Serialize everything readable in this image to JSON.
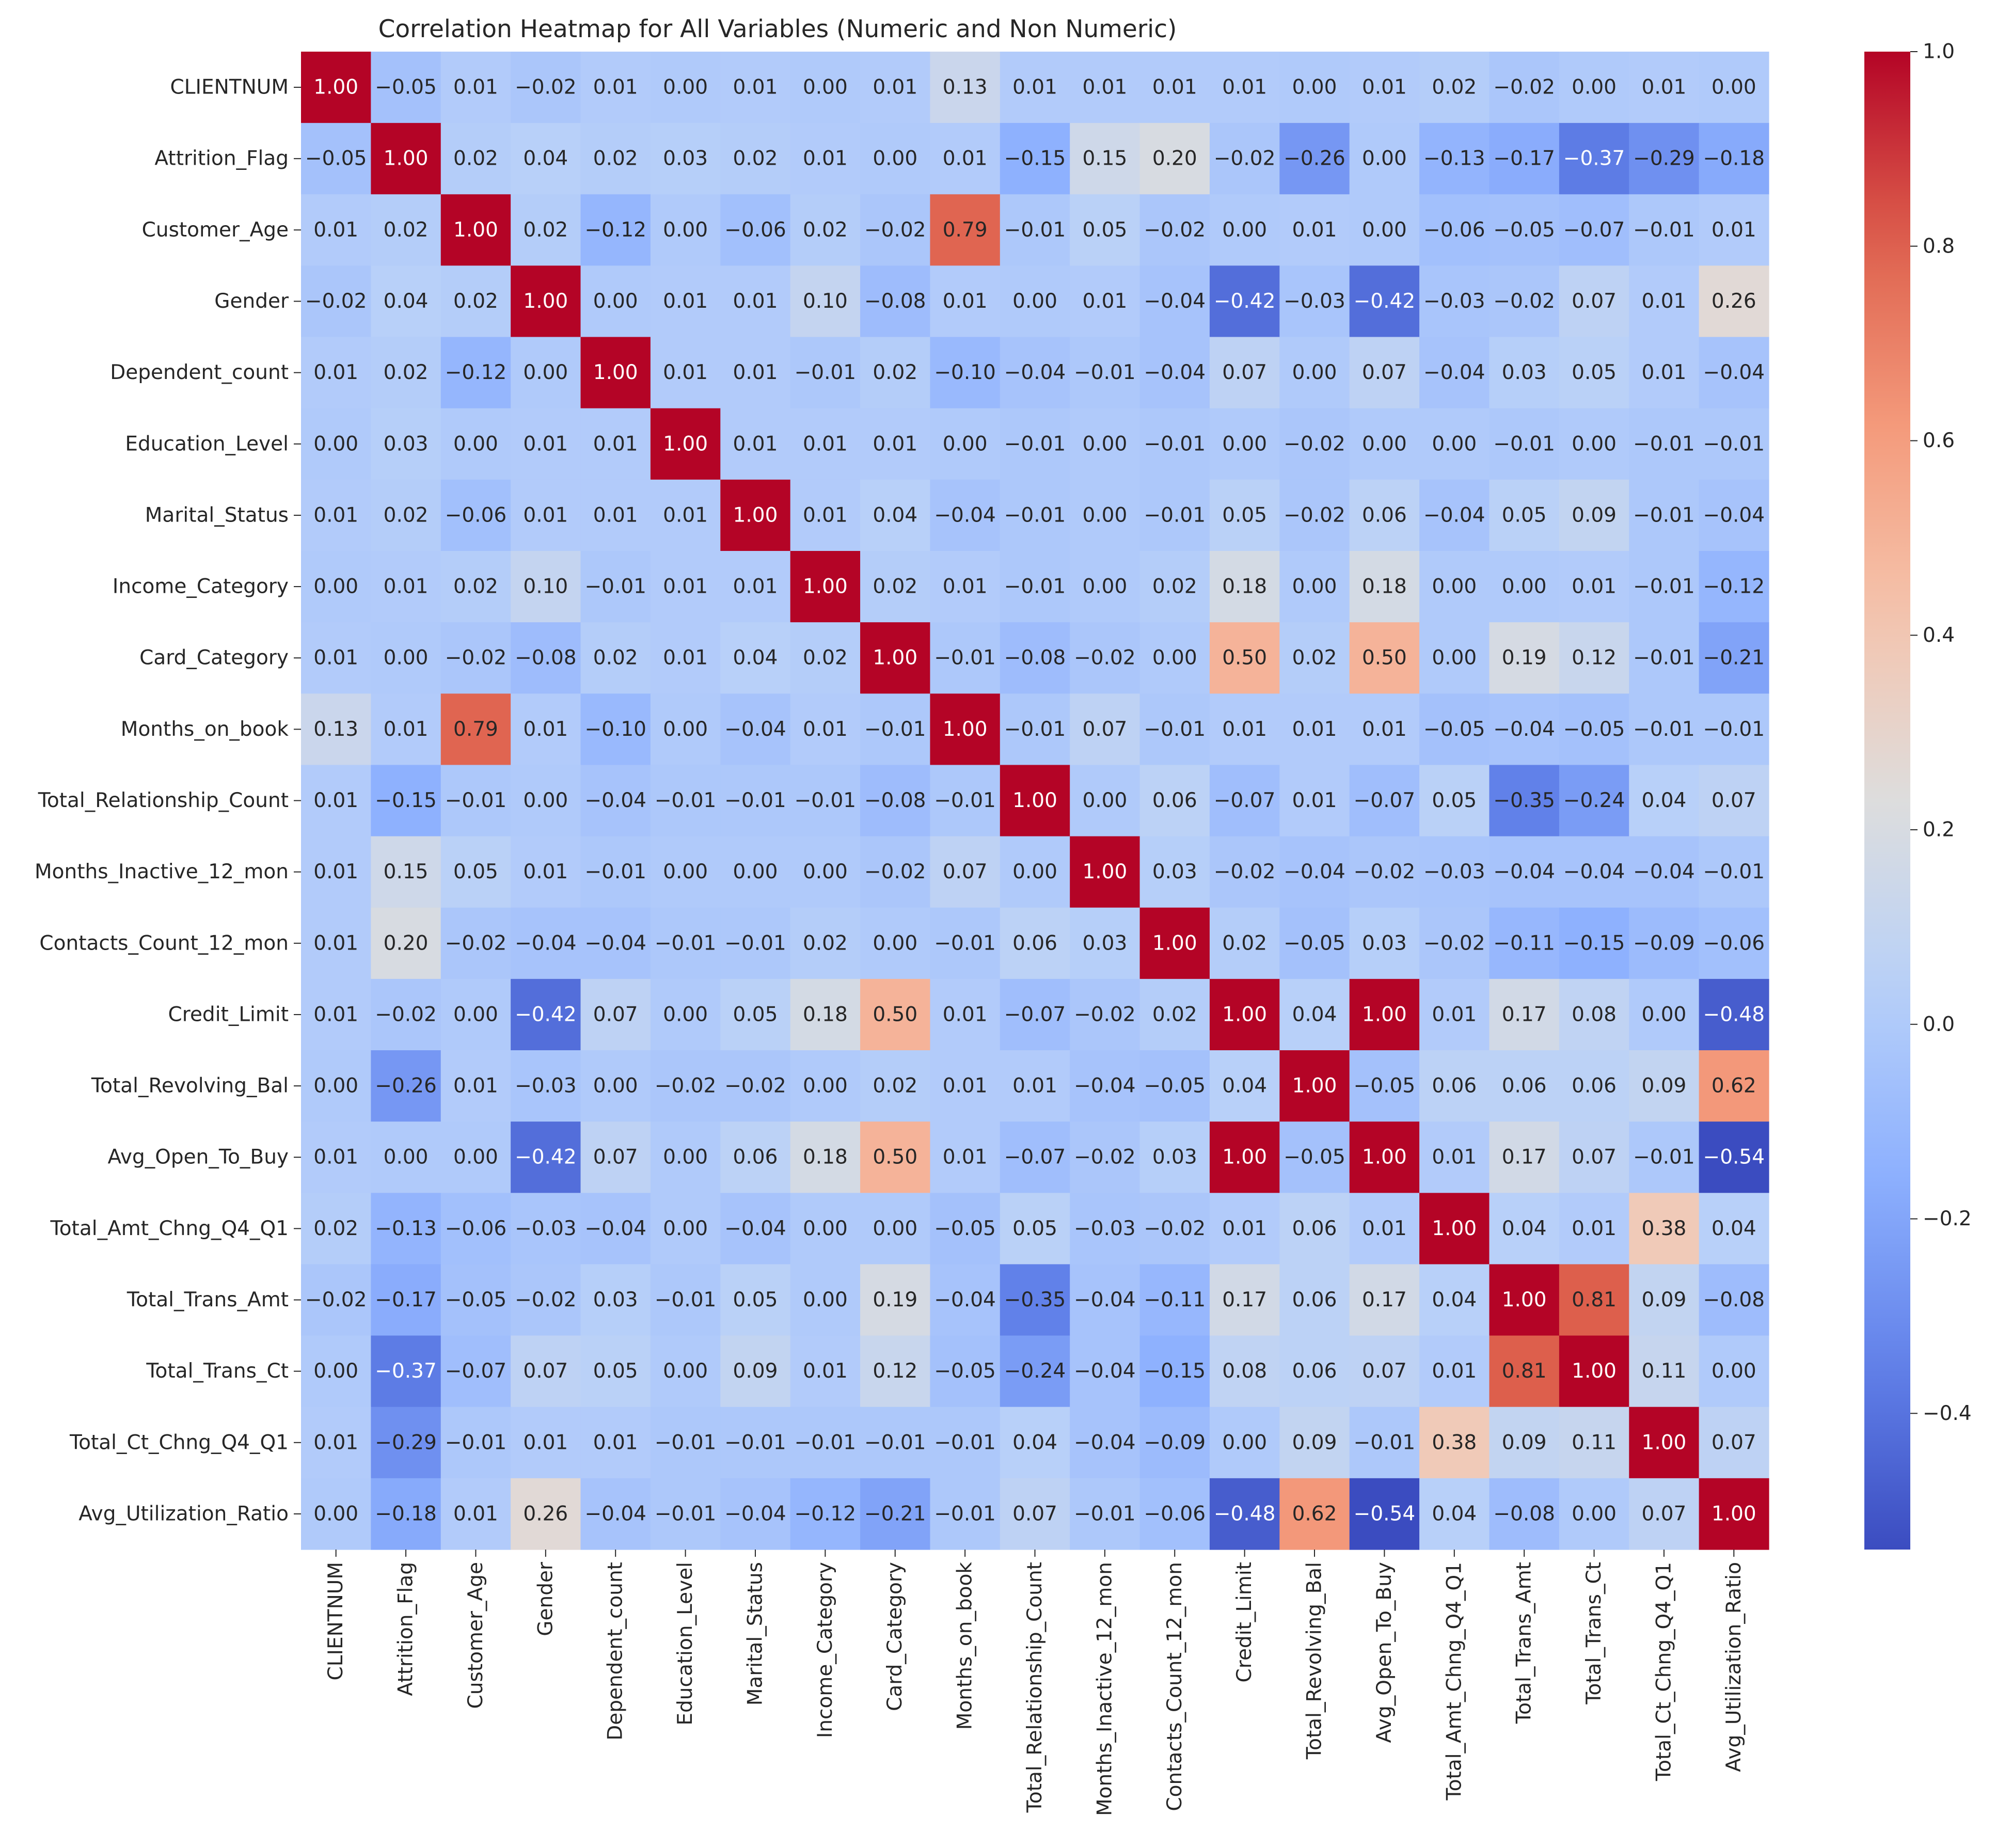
{
  "chart_data": {
    "type": "heatmap",
    "title": "Correlation Heatmap for All Variables (Numeric and Non Numeric)",
    "xlabel": "",
    "ylabel": "",
    "variables": [
      "CLIENTNUM",
      "Attrition_Flag",
      "Customer_Age",
      "Gender",
      "Dependent_count",
      "Education_Level",
      "Marital_Status",
      "Income_Category",
      "Card_Category",
      "Months_on_book",
      "Total_Relationship_Count",
      "Months_Inactive_12_mon",
      "Contacts_Count_12_mon",
      "Credit_Limit",
      "Total_Revolving_Bal",
      "Avg_Open_To_Buy",
      "Total_Amt_Chng_Q4_Q1",
      "Total_Trans_Amt",
      "Total_Trans_Ct",
      "Total_Ct_Chng_Q4_Q1",
      "Avg_Utilization_Ratio"
    ],
    "matrix": [
      [
        1.0,
        -0.05,
        0.01,
        -0.02,
        0.01,
        0.0,
        0.01,
        0.0,
        0.01,
        0.13,
        0.01,
        0.01,
        0.01,
        0.01,
        0.0,
        0.01,
        0.02,
        -0.02,
        -0.0,
        0.01,
        0.0
      ],
      [
        -0.05,
        1.0,
        0.02,
        0.04,
        0.02,
        0.03,
        0.02,
        0.01,
        -0.0,
        0.01,
        -0.15,
        0.15,
        0.2,
        -0.02,
        -0.26,
        -0.0,
        -0.13,
        -0.17,
        -0.37,
        -0.29,
        -0.18
      ],
      [
        0.01,
        0.02,
        1.0,
        0.02,
        -0.12,
        -0.0,
        -0.06,
        0.02,
        -0.02,
        0.79,
        -0.01,
        0.05,
        -0.02,
        0.0,
        0.01,
        0.0,
        -0.06,
        -0.05,
        -0.07,
        -0.01,
        0.01
      ],
      [
        -0.02,
        0.04,
        0.02,
        1.0,
        -0.0,
        0.01,
        0.01,
        0.1,
        -0.08,
        0.01,
        -0.0,
        0.01,
        -0.04,
        -0.42,
        -0.03,
        -0.42,
        -0.03,
        -0.02,
        0.07,
        0.01,
        0.26
      ],
      [
        0.01,
        0.02,
        -0.12,
        -0.0,
        1.0,
        0.01,
        0.01,
        -0.01,
        0.02,
        -0.1,
        -0.04,
        -0.01,
        -0.04,
        0.07,
        -0.0,
        0.07,
        -0.04,
        0.03,
        0.05,
        0.01,
        -0.04
      ],
      [
        0.0,
        0.03,
        -0.0,
        0.01,
        0.01,
        1.0,
        0.01,
        0.01,
        0.01,
        -0.0,
        -0.01,
        -0.0,
        -0.01,
        0.0,
        -0.02,
        0.0,
        -0.0,
        -0.01,
        -0.0,
        -0.01,
        -0.01
      ],
      [
        0.01,
        0.02,
        -0.06,
        0.01,
        0.01,
        0.01,
        1.0,
        0.01,
        0.04,
        -0.04,
        -0.01,
        0.0,
        -0.01,
        0.05,
        -0.02,
        0.06,
        -0.04,
        0.05,
        0.09,
        -0.01,
        -0.04
      ],
      [
        0.0,
        0.01,
        0.02,
        0.1,
        -0.01,
        0.01,
        0.01,
        1.0,
        0.02,
        0.01,
        -0.01,
        -0.0,
        0.02,
        0.18,
        0.0,
        0.18,
        -0.0,
        -0.0,
        0.01,
        -0.01,
        -0.12
      ],
      [
        0.01,
        -0.0,
        -0.02,
        -0.08,
        0.02,
        0.01,
        0.04,
        0.02,
        1.0,
        -0.01,
        -0.08,
        -0.02,
        -0.0,
        0.5,
        0.02,
        0.5,
        0.0,
        0.19,
        0.12,
        -0.01,
        -0.21
      ],
      [
        0.13,
        0.01,
        0.79,
        0.01,
        -0.1,
        -0.0,
        -0.04,
        0.01,
        -0.01,
        1.0,
        -0.01,
        0.07,
        -0.01,
        0.01,
        0.01,
        0.01,
        -0.05,
        -0.04,
        -0.05,
        -0.01,
        -0.01
      ],
      [
        0.01,
        -0.15,
        -0.01,
        -0.0,
        -0.04,
        -0.01,
        -0.01,
        -0.01,
        -0.08,
        -0.01,
        1.0,
        -0.0,
        0.06,
        -0.07,
        0.01,
        -0.07,
        0.05,
        -0.35,
        -0.24,
        0.04,
        0.07
      ],
      [
        0.01,
        0.15,
        0.05,
        0.01,
        -0.01,
        -0.0,
        0.0,
        -0.0,
        -0.02,
        0.07,
        -0.0,
        1.0,
        0.03,
        -0.02,
        -0.04,
        -0.02,
        -0.03,
        -0.04,
        -0.04,
        -0.04,
        -0.01
      ],
      [
        0.01,
        0.2,
        -0.02,
        -0.04,
        -0.04,
        -0.01,
        -0.01,
        0.02,
        -0.0,
        -0.01,
        0.06,
        0.03,
        1.0,
        0.02,
        -0.05,
        0.03,
        -0.02,
        -0.11,
        -0.15,
        -0.09,
        -0.06
      ],
      [
        0.01,
        -0.02,
        0.0,
        -0.42,
        0.07,
        0.0,
        0.05,
        0.18,
        0.5,
        0.01,
        -0.07,
        -0.02,
        0.02,
        1.0,
        0.04,
        1.0,
        0.01,
        0.17,
        0.08,
        -0.0,
        -0.48
      ],
      [
        0.0,
        -0.26,
        0.01,
        -0.03,
        -0.0,
        -0.02,
        -0.02,
        0.0,
        0.02,
        0.01,
        0.01,
        -0.04,
        -0.05,
        0.04,
        1.0,
        -0.05,
        0.06,
        0.06,
        0.06,
        0.09,
        0.62
      ],
      [
        0.01,
        -0.0,
        0.0,
        -0.42,
        0.07,
        0.0,
        0.06,
        0.18,
        0.5,
        0.01,
        -0.07,
        -0.02,
        0.03,
        1.0,
        -0.05,
        1.0,
        0.01,
        0.17,
        0.07,
        -0.01,
        -0.54
      ],
      [
        0.02,
        -0.13,
        -0.06,
        -0.03,
        -0.04,
        -0.0,
        -0.04,
        -0.0,
        0.0,
        -0.05,
        0.05,
        -0.03,
        -0.02,
        0.01,
        0.06,
        0.01,
        1.0,
        0.04,
        0.01,
        0.38,
        0.04
      ],
      [
        -0.02,
        -0.17,
        -0.05,
        -0.02,
        0.03,
        -0.01,
        0.05,
        -0.0,
        0.19,
        -0.04,
        -0.35,
        -0.04,
        -0.11,
        0.17,
        0.06,
        0.17,
        0.04,
        1.0,
        0.81,
        0.09,
        -0.08
      ],
      [
        -0.0,
        -0.37,
        -0.07,
        0.07,
        0.05,
        -0.0,
        0.09,
        0.01,
        0.12,
        -0.05,
        -0.24,
        -0.04,
        -0.15,
        0.08,
        0.06,
        0.07,
        0.01,
        0.81,
        1.0,
        0.11,
        0.0
      ],
      [
        0.01,
        -0.29,
        -0.01,
        0.01,
        0.01,
        -0.01,
        -0.01,
        -0.01,
        -0.01,
        -0.01,
        0.04,
        -0.04,
        -0.09,
        -0.0,
        0.09,
        -0.01,
        0.38,
        0.09,
        0.11,
        1.0,
        0.07
      ],
      [
        0.0,
        -0.18,
        0.01,
        0.26,
        -0.04,
        -0.01,
        -0.04,
        -0.12,
        -0.21,
        -0.01,
        0.07,
        -0.01,
        -0.06,
        -0.48,
        0.62,
        -0.54,
        0.04,
        -0.08,
        0.0,
        0.07,
        1.0
      ]
    ],
    "colormap": "coolwarm",
    "vmin": -0.54,
    "vmax": 1.0,
    "colorbar_ticks": [
      -0.4,
      -0.2,
      0.0,
      0.2,
      0.4,
      0.6,
      0.8,
      1.0
    ],
    "colorbar_tick_labels": [
      "−0.4",
      "−0.2",
      "0.0",
      "0.2",
      "0.4",
      "0.6",
      "0.8",
      "1.0"
    ],
    "colors": {
      "coolwarm_low": "#3b4cc0",
      "coolwarm_mid": "#dddddd",
      "coolwarm_high": "#b40426",
      "text_dark": "#262626",
      "text_light": "#ffffff"
    }
  }
}
